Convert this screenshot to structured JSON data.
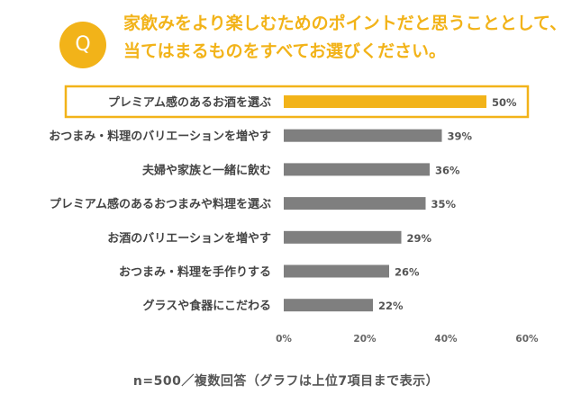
{
  "header": {
    "badge": "Q",
    "question_line1": "家飲みをより楽しむためのポイントだと思うこととして、",
    "question_line2": "当てはまるものをすべてお選びください。"
  },
  "chart_data": {
    "type": "bar",
    "orientation": "horizontal",
    "categories": [
      "プレミアム感のあるお酒を選ぶ",
      "おつまみ・料理のバリエーションを増やす",
      "夫婦や家族と一緒に飲む",
      "プレミアム感のあるおつまみや料理を選ぶ",
      "お酒のバリエーションを増やす",
      "おつまみ・料理を手作りする",
      "グラスや食器にこだわる"
    ],
    "values": [
      50,
      39,
      36,
      35,
      29,
      26,
      22
    ],
    "value_labels": [
      "50%",
      "39%",
      "36%",
      "35%",
      "29%",
      "26%",
      "22%"
    ],
    "highlight_index": 0,
    "xlim": [
      0,
      60
    ],
    "x_ticks": [
      0,
      20,
      40,
      60
    ],
    "x_tick_labels": [
      "0%",
      "20%",
      "40%",
      "60%"
    ],
    "grid": false,
    "colors": {
      "highlight": "#f2b319",
      "default": "#7f7f7f",
      "frame": "#f2b319"
    }
  },
  "footnote": "n=500／複数回答（グラフは上位7項目まで表示）"
}
